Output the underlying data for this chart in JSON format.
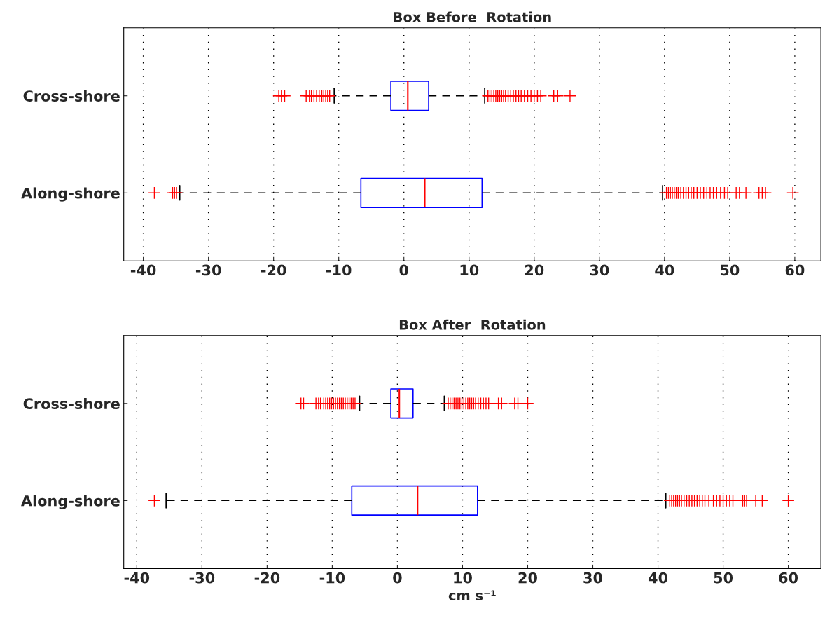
{
  "chart_data": [
    {
      "type": "box",
      "title": "Box Before  Rotation",
      "orientation": "horizontal",
      "categories": [
        "Cross-shore",
        "Along-shore"
      ],
      "xlim": [
        -43,
        64
      ],
      "xticks": [
        -40,
        -30,
        -20,
        -10,
        0,
        10,
        20,
        30,
        40,
        50,
        60
      ],
      "grid": "x",
      "series": [
        {
          "color": "#0000ff",
          "boxes": [
            {
              "low": -10.7,
              "q1": -2.0,
              "median": 0.6,
              "q3": 3.8,
              "high": 12.4,
              "outliers": [
                -19.2,
                -18.8,
                -18.3,
                -15.0,
                -14.5,
                -14.2,
                -13.8,
                -13.4,
                -13.0,
                -12.6,
                -12.3,
                -12.0,
                -11.7,
                -11.4,
                12.9,
                13.2,
                13.5,
                13.8,
                14.1,
                14.4,
                14.7,
                15.0,
                15.3,
                15.6,
                16.0,
                16.4,
                16.8,
                17.2,
                17.6,
                18.0,
                18.5,
                19.0,
                19.5,
                20.0,
                20.5,
                21.0,
                23.0,
                23.6,
                25.5
              ]
            },
            {
              "low": -34.4,
              "q1": -6.6,
              "median": 3.2,
              "q3": 12.0,
              "high": 39.7,
              "outliers": [
                -38.3,
                -35.5,
                -35.2,
                -34.9,
                40.3,
                40.6,
                40.9,
                41.2,
                41.5,
                41.8,
                42.1,
                42.5,
                42.9,
                43.3,
                43.7,
                44.1,
                44.5,
                45.0,
                45.5,
                46.0,
                46.5,
                47.0,
                47.5,
                48.0,
                48.6,
                49.2,
                49.7,
                51.0,
                51.5,
                52.5,
                54.5,
                55.0,
                55.5,
                59.7
              ]
            }
          ]
        }
      ]
    },
    {
      "type": "box",
      "title": "Box After  Rotation",
      "xlabel": "cm s⁻¹",
      "orientation": "horizontal",
      "categories": [
        "Cross-shore",
        "Along-shore"
      ],
      "xlim": [
        -42,
        65
      ],
      "xticks": [
        -40,
        -30,
        -20,
        -10,
        0,
        10,
        20,
        30,
        40,
        50,
        60
      ],
      "grid": "x",
      "series": [
        {
          "color": "#0000ff",
          "boxes": [
            {
              "low": -5.8,
              "q1": -1.0,
              "median": 0.3,
              "q3": 2.4,
              "high": 7.2,
              "outliers": [
                -14.8,
                -14.4,
                -12.5,
                -12.1,
                -11.8,
                -11.3,
                -11.0,
                -10.7,
                -10.4,
                -10.1,
                -9.8,
                -9.5,
                -9.2,
                -8.9,
                -8.6,
                -8.3,
                -8.0,
                -7.7,
                -7.4,
                -7.1,
                -6.8,
                -6.5,
                7.8,
                8.1,
                8.4,
                8.7,
                9.0,
                9.3,
                9.6,
                9.9,
                10.2,
                10.5,
                10.8,
                11.1,
                11.4,
                11.7,
                12.0,
                12.4,
                12.8,
                13.2,
                13.6,
                14.0,
                15.5,
                16.0,
                18.0,
                18.5,
                20.0
              ]
            },
            {
              "low": -35.5,
              "q1": -7.0,
              "median": 3.1,
              "q3": 12.3,
              "high": 41.2,
              "outliers": [
                -37.3,
                41.8,
                42.1,
                42.4,
                42.7,
                43.0,
                43.3,
                43.6,
                44.0,
                44.4,
                44.8,
                45.2,
                45.6,
                46.0,
                46.4,
                46.8,
                47.2,
                47.8,
                48.5,
                49.0,
                49.5,
                50.0,
                50.5,
                51.0,
                51.5,
                53.0,
                53.3,
                53.6,
                55.0,
                56.0,
                60.0
              ]
            }
          ]
        }
      ]
    }
  ]
}
